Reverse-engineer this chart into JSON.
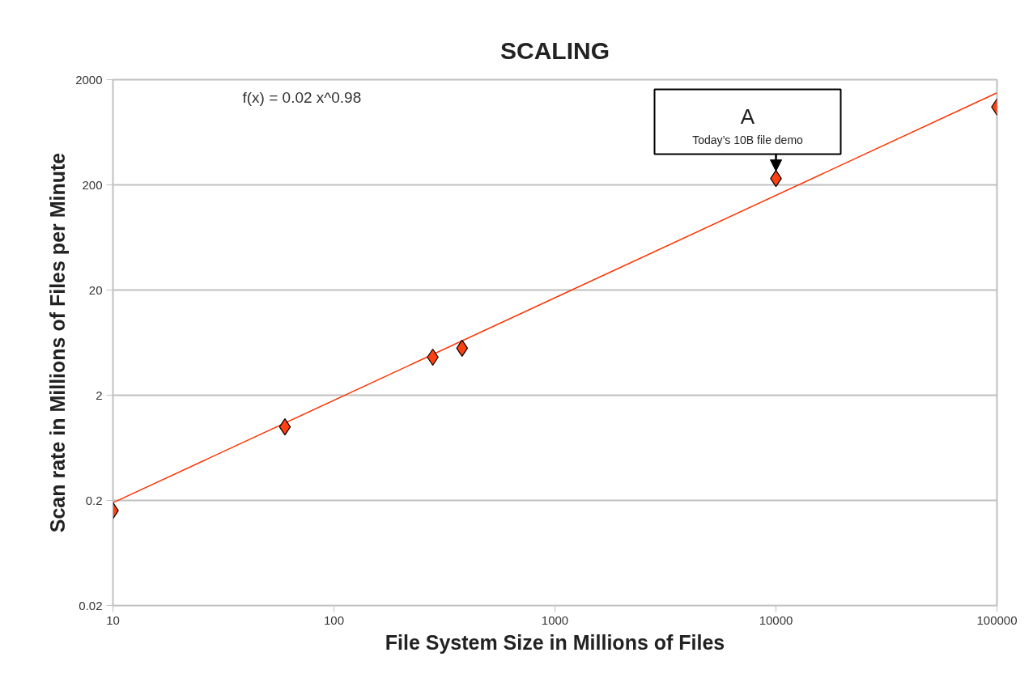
{
  "chart_data": {
    "type": "scatter",
    "title": "SCALING",
    "xlabel": "File System Size in Millions of Files",
    "ylabel": "Scan rate in Millions of Files per Minute",
    "log": "xy",
    "grid": "y",
    "marker": "diamond",
    "xlim": [
      10,
      100000
    ],
    "xticks": [
      10,
      100,
      1000,
      10000,
      100000
    ],
    "ylim": [
      0.02,
      2000
    ],
    "yticks": [
      0.02,
      0.2,
      2,
      20,
      200,
      2000
    ],
    "series": [
      {
        "color": "#ff4010",
        "x": [
          10,
          60,
          280,
          380,
          10000,
          100000
        ],
        "values": [
          0.16,
          1.0,
          4.6,
          5.6,
          230,
          1100
        ]
      },
      {
        "type": "line",
        "marker": "none",
        "color": "#ff3300",
        "x": [
          10,
          100000
        ],
        "values": [
          0.19,
          1500
        ]
      }
    ],
    "annotations": [
      "f(x) = 0.02 x^0.98",
      {
        "text": "A\nToday’s 10B file demo",
        "x": 10000,
        "y": 230
      }
    ]
  }
}
